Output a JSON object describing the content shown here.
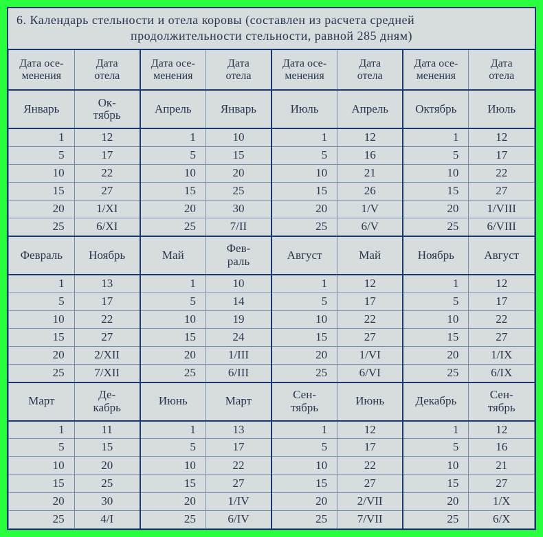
{
  "colors": {
    "frame_bg": "#29ff3e",
    "paper_bg": "#d7ddde",
    "border_dark": "#1a3a6e",
    "border_light": "#7a8aa0",
    "text": "#2a3648"
  },
  "title": {
    "line1": "6. Календарь стельности и отела коровы (составлен из расчета средней",
    "line2": "продолжительности стельности, равной 285 дням)"
  },
  "headers": {
    "osem_l1": "Дата осе-",
    "osem_l2": "менения",
    "otel_l1": "Дата",
    "otel_l2": "отела"
  },
  "blocks": [
    {
      "months": [
        {
          "m1": "Январь",
          "m2_l1": "Ок-",
          "m2_l2": "тябрь"
        },
        {
          "m1": "Апрель",
          "m2_l1": "Январь",
          "m2_l2": ""
        },
        {
          "m1": "Июль",
          "m2_l1": "Апрель",
          "m2_l2": ""
        },
        {
          "m1": "Октябрь",
          "m2_l1": "Июль",
          "m2_l2": ""
        }
      ],
      "rows": [
        [
          "1",
          "12",
          "1",
          "10",
          "1",
          "12",
          "1",
          "12"
        ],
        [
          "5",
          "17",
          "5",
          "15",
          "5",
          "16",
          "5",
          "17"
        ],
        [
          "10",
          "22",
          "10",
          "20",
          "10",
          "21",
          "10",
          "22"
        ],
        [
          "15",
          "27",
          "15",
          "25",
          "15",
          "26",
          "15",
          "27"
        ],
        [
          "20",
          "1/XI",
          "20",
          "30",
          "20",
          "1/V",
          "20",
          "1/VIII"
        ],
        [
          "25",
          "6/XI",
          "25",
          "7/II",
          "25",
          "6/V",
          "25",
          "6/VIII"
        ]
      ]
    },
    {
      "months": [
        {
          "m1": "Февраль",
          "m2_l1": "Ноябрь",
          "m2_l2": ""
        },
        {
          "m1": "Май",
          "m2_l1": "Фев-",
          "m2_l2": "раль"
        },
        {
          "m1": "Август",
          "m2_l1": "Май",
          "m2_l2": ""
        },
        {
          "m1": "Ноябрь",
          "m2_l1": "Август",
          "m2_l2": ""
        }
      ],
      "rows": [
        [
          "1",
          "13",
          "1",
          "10",
          "1",
          "12",
          "1",
          "12"
        ],
        [
          "5",
          "17",
          "5",
          "14",
          "5",
          "17",
          "5",
          "17"
        ],
        [
          "10",
          "22",
          "10",
          "19",
          "10",
          "22",
          "10",
          "22"
        ],
        [
          "15",
          "27",
          "15",
          "24",
          "15",
          "27",
          "15",
          "27"
        ],
        [
          "20",
          "2/XII",
          "20",
          "1/III",
          "20",
          "1/VI",
          "20",
          "1/IX"
        ],
        [
          "25",
          "7/XII",
          "25",
          "6/III",
          "25",
          "6/VI",
          "25",
          "6/IX"
        ]
      ]
    },
    {
      "months": [
        {
          "m1": "Март",
          "m2_l1": "Де-",
          "m2_l2": "кабрь"
        },
        {
          "m1": "Июнь",
          "m2_l1": "Март",
          "m2_l2": ""
        },
        {
          "m1": "Сен-",
          "m1_l2": "тябрь",
          "m2_l1": "Июнь",
          "m2_l2": ""
        },
        {
          "m1": "Декабрь",
          "m2_l1": "Сен-",
          "m2_l2": "тябрь"
        }
      ],
      "rows": [
        [
          "1",
          "11",
          "1",
          "13",
          "1",
          "12",
          "1",
          "12"
        ],
        [
          "5",
          "15",
          "5",
          "17",
          "5",
          "17",
          "5",
          "16"
        ],
        [
          "10",
          "20",
          "10",
          "22",
          "10",
          "22",
          "10",
          "21"
        ],
        [
          "15",
          "25",
          "15",
          "27",
          "15",
          "27",
          "15",
          "27"
        ],
        [
          "20",
          "30",
          "20",
          "1/IV",
          "20",
          "2/VII",
          "20",
          "1/X"
        ],
        [
          "25",
          "4/I",
          "25",
          "6/IV",
          "25",
          "7/VII",
          "25",
          "6/X"
        ]
      ]
    }
  ]
}
